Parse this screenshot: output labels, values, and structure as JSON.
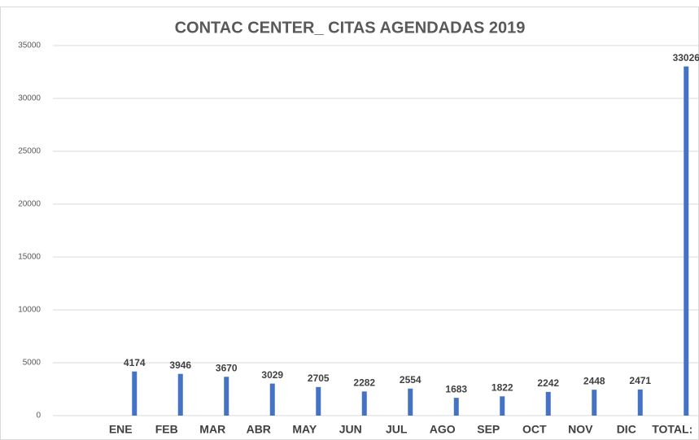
{
  "chart_data": {
    "type": "bar",
    "title": "CONTAC CENTER_ CITAS AGENDADAS 2019",
    "categories": [
      "ENE",
      "FEB",
      "MAR",
      "ABR",
      "MAY",
      "JUN",
      "JUL",
      "AGO",
      "SEP",
      "OCT",
      "NOV",
      "DIC",
      "TOTAL:"
    ],
    "values": [
      4174,
      3946,
      3670,
      3029,
      2705,
      2282,
      2554,
      1683,
      1822,
      2242,
      2448,
      2471,
      33026
    ],
    "color": "#4472c4",
    "ylim": [
      0,
      35000
    ],
    "yticks": [
      0,
      5000,
      10000,
      15000,
      20000,
      25000,
      30000,
      35000
    ],
    "grid": true
  }
}
